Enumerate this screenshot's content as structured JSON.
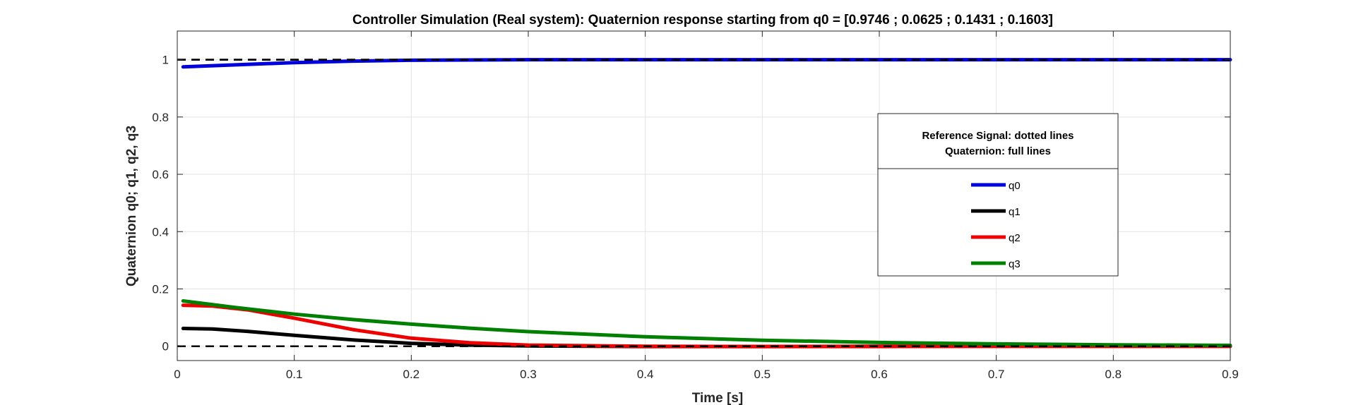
{
  "chart_data": {
    "type": "line",
    "title": "Controller Simulation (Real system): Quaternion response starting from q0 = [0.9746 ; 0.0625 ; 0.1431 ; 0.1603]",
    "xlabel": "Time [s]",
    "ylabel": "Quaternion q0; q1, q2, q3",
    "xlim": [
      0,
      0.9
    ],
    "ylim": [
      -0.05,
      1.1
    ],
    "xticks": [
      0,
      0.1,
      0.2,
      0.3,
      0.4,
      0.5,
      0.6,
      0.7,
      0.8,
      0.9
    ],
    "xtick_labels": [
      "0",
      "0.1",
      "0.2",
      "0.3",
      "0.4",
      "0.5",
      "0.6",
      "0.7",
      "0.8",
      "0.9"
    ],
    "yticks": [
      0,
      0.2,
      0.4,
      0.6,
      0.8,
      1
    ],
    "ytick_labels": [
      "0",
      "0.2",
      "0.4",
      "0.6",
      "0.8",
      "1"
    ],
    "grid": true,
    "legend": {
      "title_lines": [
        "Reference Signal: dotted lines",
        "Quaternion: full lines"
      ],
      "placement": "right"
    },
    "reference_lines": [
      {
        "y": 1,
        "style": "dashed",
        "color": "#000000"
      },
      {
        "y": 0,
        "style": "dashed",
        "color": "#000000"
      }
    ],
    "series": [
      {
        "name": "q0",
        "color": "#0000dd",
        "x": [
          0.005,
          0.05,
          0.1,
          0.15,
          0.2,
          0.25,
          0.3,
          0.4,
          0.5,
          0.6,
          0.7,
          0.8,
          0.9
        ],
        "y": [
          0.975,
          0.982,
          0.99,
          0.995,
          0.998,
          0.999,
          1.0,
          1.0,
          1.0,
          1.0,
          1.0,
          1.0,
          1.0
        ]
      },
      {
        "name": "q1",
        "color": "#000000",
        "x": [
          0.005,
          0.03,
          0.06,
          0.1,
          0.15,
          0.2,
          0.25,
          0.3,
          0.4,
          0.5,
          0.6,
          0.7,
          0.8,
          0.9
        ],
        "y": [
          0.062,
          0.06,
          0.052,
          0.038,
          0.022,
          0.01,
          0.004,
          0.001,
          -0.001,
          -0.001,
          0.0,
          0.0,
          0.0,
          0.0
        ]
      },
      {
        "name": "q2",
        "color": "#ee0000",
        "x": [
          0.005,
          0.03,
          0.06,
          0.1,
          0.15,
          0.2,
          0.25,
          0.3,
          0.4,
          0.5,
          0.6,
          0.7,
          0.8,
          0.9
        ],
        "y": [
          0.143,
          0.14,
          0.127,
          0.098,
          0.058,
          0.028,
          0.012,
          0.004,
          0.0,
          -0.001,
          -0.001,
          0.0,
          0.0,
          0.0
        ]
      },
      {
        "name": "q3",
        "color": "#008000",
        "x": [
          0.005,
          0.05,
          0.1,
          0.15,
          0.2,
          0.25,
          0.3,
          0.4,
          0.5,
          0.6,
          0.7,
          0.8,
          0.9
        ],
        "y": [
          0.158,
          0.135,
          0.112,
          0.093,
          0.077,
          0.063,
          0.051,
          0.033,
          0.021,
          0.013,
          0.008,
          0.005,
          0.003
        ]
      }
    ]
  }
}
